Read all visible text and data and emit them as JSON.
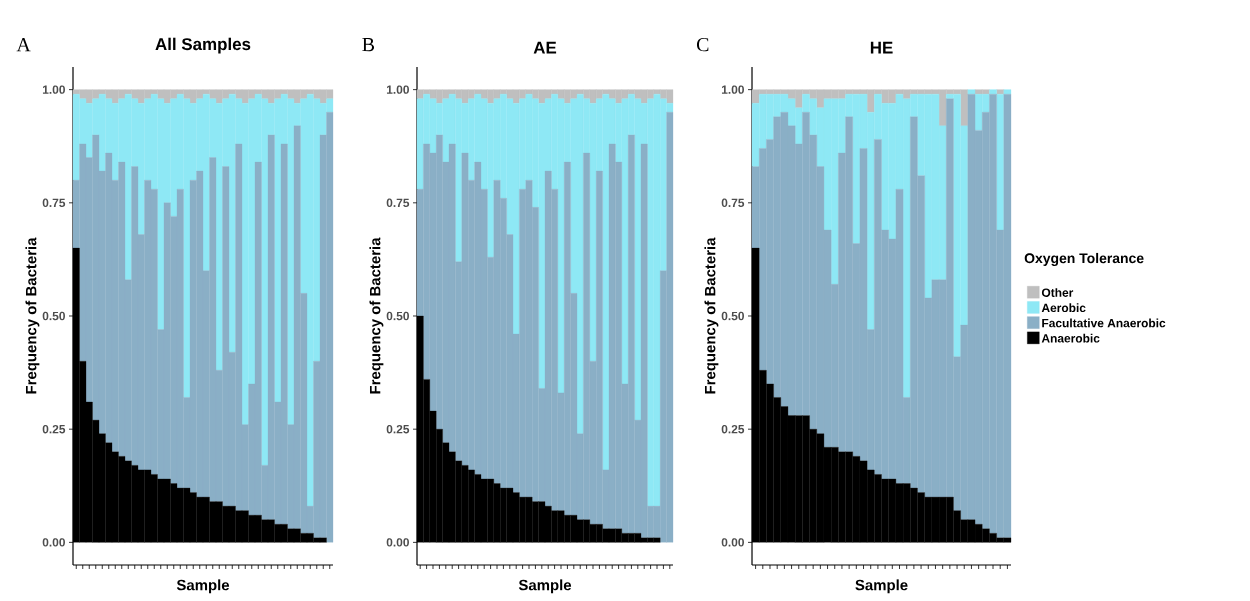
{
  "chart_data": [
    {
      "type": "bar",
      "stacked": true,
      "title": "All Samples",
      "xlabel": "Sample",
      "ylabel": "Frequency of Bacteria",
      "annotations": [
        "A"
      ],
      "tick_labels": "y",
      "legend": false,
      "categories": [
        null,
        null,
        null,
        null,
        null,
        null,
        null,
        null,
        null,
        null,
        null,
        null,
        null,
        null,
        null,
        null,
        null,
        null,
        null,
        null,
        null,
        null,
        null,
        null,
        null,
        null,
        null,
        null,
        null,
        null,
        null,
        null,
        null,
        null,
        null,
        null,
        null,
        null,
        null,
        null
      ],
      "ylim": [
        -0.05,
        1.05
      ],
      "yticks": [
        {
          "value": 0,
          "label": "0.00"
        },
        {
          "value": 0.25,
          "label": "0.25"
        },
        {
          "value": 0.5,
          "label": "0.50"
        },
        {
          "value": 0.75,
          "label": "0.75"
        },
        {
          "value": 1,
          "label": "1.00"
        }
      ],
      "series": [
        {
          "color": "#000000",
          "values": [
            0.65,
            0.4,
            0.31,
            0.27,
            0.24,
            0.22,
            0.2,
            0.19,
            0.18,
            0.17,
            0.16,
            0.16,
            0.15,
            0.14,
            0.14,
            0.13,
            0.12,
            0.12,
            0.11,
            0.1,
            0.1,
            0.09,
            0.09,
            0.08,
            0.08,
            0.07,
            0.07,
            0.06,
            0.06,
            0.05,
            0.05,
            0.04,
            0.04,
            0.03,
            0.03,
            0.02,
            0.02,
            0.01,
            0.01,
            0.0
          ]
        },
        {
          "color": "#8aafc6",
          "values": [
            0.15,
            0.48,
            0.54,
            0.63,
            0.58,
            0.64,
            0.6,
            0.65,
            0.4,
            0.66,
            0.52,
            0.64,
            0.63,
            0.33,
            0.61,
            0.59,
            0.66,
            0.2,
            0.69,
            0.72,
            0.5,
            0.76,
            0.29,
            0.75,
            0.34,
            0.81,
            0.19,
            0.29,
            0.78,
            0.12,
            0.85,
            0.27,
            0.84,
            0.23,
            0.89,
            0.53,
            0.06,
            0.39,
            0.89,
            0.95
          ]
        },
        {
          "color": "#8ee8f5",
          "values": [
            0.19,
            0.1,
            0.12,
            0.08,
            0.17,
            0.12,
            0.17,
            0.14,
            0.41,
            0.15,
            0.29,
            0.18,
            0.21,
            0.51,
            0.22,
            0.26,
            0.21,
            0.66,
            0.17,
            0.16,
            0.39,
            0.13,
            0.59,
            0.15,
            0.57,
            0.1,
            0.71,
            0.63,
            0.15,
            0.81,
            0.07,
            0.67,
            0.11,
            0.72,
            0.05,
            0.43,
            0.91,
            0.58,
            0.07,
            0.03
          ]
        },
        {
          "color": "#bfbfbf",
          "values": [
            0.01,
            0.02,
            0.03,
            0.02,
            0.01,
            0.02,
            0.03,
            0.02,
            0.01,
            0.02,
            0.03,
            0.02,
            0.01,
            0.02,
            0.03,
            0.02,
            0.01,
            0.02,
            0.03,
            0.02,
            0.01,
            0.02,
            0.03,
            0.02,
            0.01,
            0.02,
            0.03,
            0.02,
            0.01,
            0.02,
            0.03,
            0.02,
            0.01,
            0.02,
            0.03,
            0.02,
            0.01,
            0.02,
            0.03,
            0.02
          ]
        }
      ]
    },
    {
      "type": "bar",
      "stacked": true,
      "title": "AE",
      "xlabel": "Sample",
      "ylabel": "Frequency of Bacteria",
      "annotations": [
        "B"
      ],
      "tick_labels": "y",
      "legend": false,
      "categories": [
        null,
        null,
        null,
        null,
        null,
        null,
        null,
        null,
        null,
        null,
        null,
        null,
        null,
        null,
        null,
        null,
        null,
        null,
        null,
        null,
        null,
        null,
        null,
        null,
        null,
        null,
        null,
        null,
        null,
        null,
        null,
        null,
        null,
        null,
        null,
        null,
        null,
        null,
        null,
        null
      ],
      "ylim": [
        -0.05,
        1.05
      ],
      "yticks": [
        {
          "value": 0,
          "label": "0.00"
        },
        {
          "value": 0.25,
          "label": "0.25"
        },
        {
          "value": 0.5,
          "label": "0.50"
        },
        {
          "value": 0.75,
          "label": "0.75"
        },
        {
          "value": 1,
          "label": "1.00"
        }
      ],
      "series": [
        {
          "color": "#000000",
          "values": [
            0.5,
            0.36,
            0.29,
            0.25,
            0.22,
            0.2,
            0.18,
            0.17,
            0.16,
            0.15,
            0.14,
            0.14,
            0.13,
            0.12,
            0.12,
            0.11,
            0.1,
            0.1,
            0.09,
            0.09,
            0.08,
            0.07,
            0.07,
            0.06,
            0.06,
            0.05,
            0.05,
            0.04,
            0.04,
            0.03,
            0.03,
            0.03,
            0.02,
            0.02,
            0.02,
            0.01,
            0.01,
            0.01,
            0.0,
            0.0
          ]
        },
        {
          "color": "#8aafc6",
          "values": [
            0.28,
            0.52,
            0.57,
            0.65,
            0.62,
            0.68,
            0.44,
            0.69,
            0.64,
            0.69,
            0.64,
            0.49,
            0.67,
            0.64,
            0.56,
            0.35,
            0.68,
            0.7,
            0.65,
            0.25,
            0.74,
            0.71,
            0.26,
            0.78,
            0.49,
            0.19,
            0.81,
            0.36,
            0.78,
            0.13,
            0.85,
            0.81,
            0.33,
            0.88,
            0.25,
            0.87,
            0.07,
            0.07,
            0.6,
            0.95
          ]
        },
        {
          "color": "#8ee8f5",
          "values": [
            0.2,
            0.11,
            0.12,
            0.07,
            0.14,
            0.11,
            0.36,
            0.11,
            0.18,
            0.15,
            0.2,
            0.34,
            0.18,
            0.23,
            0.3,
            0.51,
            0.2,
            0.19,
            0.24,
            0.63,
            0.16,
            0.21,
            0.65,
            0.13,
            0.43,
            0.75,
            0.12,
            0.57,
            0.16,
            0.83,
            0.1,
            0.13,
            0.63,
            0.09,
            0.71,
            0.09,
            0.9,
            0.91,
            0.38,
            0.02
          ]
        },
        {
          "color": "#bfbfbf",
          "values": [
            0.02,
            0.01,
            0.02,
            0.03,
            0.02,
            0.01,
            0.02,
            0.03,
            0.02,
            0.01,
            0.02,
            0.03,
            0.02,
            0.01,
            0.02,
            0.03,
            0.02,
            0.01,
            0.02,
            0.03,
            0.02,
            0.01,
            0.02,
            0.03,
            0.02,
            0.01,
            0.02,
            0.03,
            0.02,
            0.01,
            0.02,
            0.03,
            0.02,
            0.01,
            0.02,
            0.03,
            0.02,
            0.01,
            0.02,
            0.03
          ]
        }
      ]
    },
    {
      "type": "bar",
      "stacked": true,
      "title": "HE",
      "xlabel": "Sample",
      "ylabel": "Frequency of Bacteria",
      "annotations": [
        "C"
      ],
      "tick_labels": "y",
      "legend": "right",
      "legend_title": "Oxygen Tolerance",
      "categories": [
        null,
        null,
        null,
        null,
        null,
        null,
        null,
        null,
        null,
        null,
        null,
        null,
        null,
        null,
        null,
        null,
        null,
        null,
        null,
        null,
        null,
        null,
        null,
        null,
        null,
        null,
        null,
        null,
        null,
        null,
        null,
        null,
        null,
        null,
        null,
        null
      ],
      "ylim": [
        -0.05,
        1.05
      ],
      "yticks": [
        {
          "value": 0,
          "label": "0.00"
        },
        {
          "value": 0.25,
          "label": "0.25"
        },
        {
          "value": 0.5,
          "label": "0.50"
        },
        {
          "value": 0.75,
          "label": "0.75"
        },
        {
          "value": 1,
          "label": "1.00"
        }
      ],
      "series": [
        {
          "name": "Anaerobic",
          "color": "#000000",
          "values": [
            0.65,
            0.38,
            0.35,
            0.32,
            0.3,
            0.28,
            0.28,
            0.28,
            0.25,
            0.24,
            0.21,
            0.21,
            0.2,
            0.2,
            0.19,
            0.18,
            0.16,
            0.15,
            0.14,
            0.14,
            0.13,
            0.13,
            0.12,
            0.11,
            0.1,
            0.1,
            0.1,
            0.1,
            0.07,
            0.05,
            0.05,
            0.04,
            0.03,
            0.02,
            0.01,
            0.01
          ]
        },
        {
          "name": "Facultative Anaerobic",
          "color": "#8aafc6",
          "values": [
            0.18,
            0.49,
            0.54,
            0.62,
            0.65,
            0.64,
            0.6,
            0.67,
            0.65,
            0.59,
            0.48,
            0.36,
            0.66,
            0.74,
            0.47,
            0.69,
            0.31,
            0.74,
            0.55,
            0.53,
            0.65,
            0.19,
            0.82,
            0.7,
            0.44,
            0.48,
            0.48,
            0.88,
            0.34,
            0.43,
            0.94,
            0.87,
            0.92,
            0.97,
            0.68,
            0.98
          ]
        },
        {
          "name": "Aerobic",
          "color": "#8ee8f5",
          "values": [
            0.14,
            0.12,
            0.1,
            0.05,
            0.04,
            0.06,
            0.08,
            0.04,
            0.08,
            0.13,
            0.29,
            0.41,
            0.12,
            0.05,
            0.33,
            0.12,
            0.48,
            0.1,
            0.28,
            0.3,
            0.21,
            0.66,
            0.05,
            0.18,
            0.45,
            0.41,
            0.34,
            0.01,
            0.58,
            0.44,
            0.01,
            0.08,
            0.04,
            0.01,
            0.3,
            0.01
          ]
        },
        {
          "name": "Other",
          "color": "#bfbfbf",
          "values": [
            0.03,
            0.01,
            0.01,
            0.01,
            0.01,
            0.02,
            0.04,
            0.01,
            0.02,
            0.04,
            0.02,
            0.02,
            0.02,
            0.01,
            0.01,
            0.01,
            0.05,
            0.01,
            0.03,
            0.03,
            0.01,
            0.02,
            0.01,
            0.01,
            0.01,
            0.01,
            0.08,
            0.01,
            0.01,
            0.08,
            0.0,
            0.01,
            0.01,
            0.0,
            0.01,
            0.0
          ]
        }
      ]
    }
  ]
}
